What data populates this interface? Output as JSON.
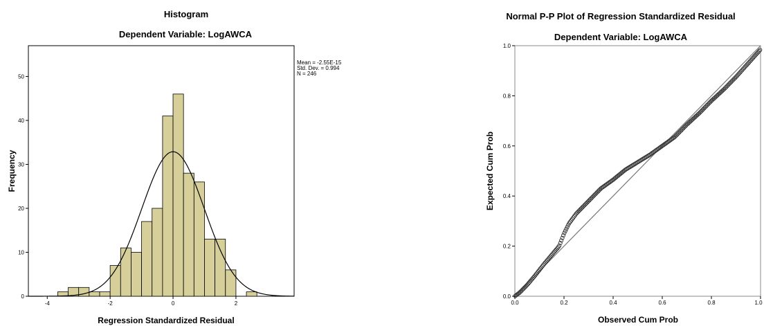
{
  "chart_data": [
    {
      "type": "histogram",
      "title": "Histogram",
      "subtitle": "Dependent Variable: LogAWCA",
      "xlabel": "Regression Standardized Residual",
      "ylabel": "Frequency",
      "xlim": [
        -4.6,
        3.85
      ],
      "ylim": [
        0,
        57
      ],
      "x_ticks": [
        -4,
        -2,
        0,
        2
      ],
      "y_ticks": [
        0,
        10,
        20,
        30,
        40,
        50
      ],
      "bin_width": 0.333,
      "bins": [
        {
          "start": -3.667,
          "count": 1
        },
        {
          "start": -3.333,
          "count": 2
        },
        {
          "start": -3.0,
          "count": 2
        },
        {
          "start": -2.667,
          "count": 1
        },
        {
          "start": -2.333,
          "count": 1
        },
        {
          "start": -2.0,
          "count": 7
        },
        {
          "start": -1.667,
          "count": 11
        },
        {
          "start": -1.333,
          "count": 10
        },
        {
          "start": -1.0,
          "count": 17
        },
        {
          "start": -0.667,
          "count": 20
        },
        {
          "start": -0.333,
          "count": 41
        },
        {
          "start": 0.0,
          "count": 46
        },
        {
          "start": 0.333,
          "count": 28
        },
        {
          "start": 0.667,
          "count": 26
        },
        {
          "start": 1.0,
          "count": 13
        },
        {
          "start": 1.333,
          "count": 13
        },
        {
          "start": 1.667,
          "count": 6
        },
        {
          "start": 2.333,
          "count": 1
        }
      ],
      "normal_curve": {
        "mean": 0,
        "sd": 0.994,
        "n": 246
      },
      "stats": [
        "Mean = -2.55E-15",
        "Std. Dev. = 0.994",
        "N = 246"
      ],
      "bar_color": "#d6cf9a",
      "grid": false
    },
    {
      "type": "scatter",
      "title": "Normal P-P Plot of Regression Standardized Residual",
      "subtitle": "Dependent Variable: LogAWCA",
      "xlabel": "Observed Cum Prob",
      "ylabel": "Expected Cum Prob",
      "xlim": [
        0,
        1
      ],
      "ylim": [
        0,
        1
      ],
      "x_ticks": [
        "0.0",
        "0.2",
        "0.4",
        "0.6",
        "0.8",
        "1.0"
      ],
      "y_ticks": [
        "0.0",
        "0.2",
        "0.4",
        "0.6",
        "0.8",
        "1.0"
      ],
      "reference_line": {
        "from": [
          0,
          0
        ],
        "to": [
          1,
          1
        ]
      },
      "points_count": 246,
      "curve_points": [
        [
          0.0,
          0.0
        ],
        [
          0.02,
          0.015
        ],
        [
          0.05,
          0.045
        ],
        [
          0.08,
          0.08
        ],
        [
          0.12,
          0.13
        ],
        [
          0.15,
          0.165
        ],
        [
          0.18,
          0.2
        ],
        [
          0.2,
          0.25
        ],
        [
          0.22,
          0.29
        ],
        [
          0.25,
          0.33
        ],
        [
          0.3,
          0.38
        ],
        [
          0.35,
          0.43
        ],
        [
          0.4,
          0.465
        ],
        [
          0.45,
          0.505
        ],
        [
          0.5,
          0.535
        ],
        [
          0.55,
          0.565
        ],
        [
          0.6,
          0.6
        ],
        [
          0.65,
          0.635
        ],
        [
          0.7,
          0.685
        ],
        [
          0.75,
          0.73
        ],
        [
          0.8,
          0.78
        ],
        [
          0.85,
          0.825
        ],
        [
          0.9,
          0.875
        ],
        [
          0.95,
          0.93
        ],
        [
          1.0,
          0.985
        ]
      ],
      "grid": false
    }
  ]
}
